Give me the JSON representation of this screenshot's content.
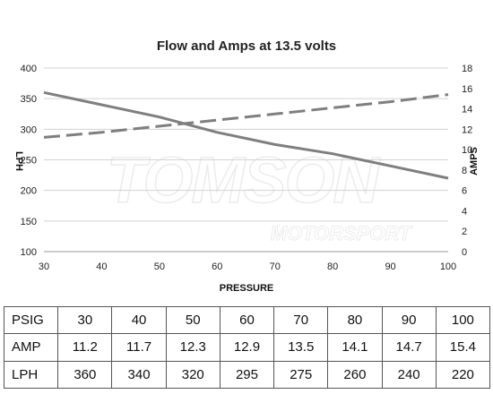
{
  "chart_data": {
    "type": "line",
    "title": "Flow and Amps at 13.5 volts",
    "xlabel": "PRESSURE",
    "ylabel_left": "LPH",
    "ylabel_right": "AMPS",
    "x": [
      30,
      40,
      50,
      60,
      70,
      80,
      90,
      100
    ],
    "xlim": [
      30,
      100
    ],
    "xticks": [
      30,
      40,
      50,
      60,
      70,
      80,
      90,
      100
    ],
    "ylim_left": [
      100,
      400
    ],
    "yticks_left": [
      100,
      150,
      200,
      250,
      300,
      350,
      400
    ],
    "ylim_right": [
      0,
      18
    ],
    "yticks_right": [
      0,
      2,
      4,
      6,
      8,
      10,
      12,
      14,
      16,
      18
    ],
    "grid": "horizontal",
    "series": [
      {
        "name": "LPH",
        "axis": "left",
        "style": "solid",
        "color": "#7f7f7f",
        "values": [
          360,
          340,
          320,
          295,
          275,
          260,
          240,
          220
        ]
      },
      {
        "name": "AMP",
        "axis": "right",
        "style": "dashed",
        "color": "#7f7f7f",
        "values": [
          11.2,
          11.7,
          12.3,
          12.9,
          13.5,
          14.1,
          14.7,
          15.4
        ]
      }
    ]
  },
  "watermark": {
    "main": "TOMSON",
    "sub": "MOTORSPORT"
  },
  "table": {
    "rows": [
      {
        "label": "PSIG",
        "values": [
          "30",
          "40",
          "50",
          "60",
          "70",
          "80",
          "90",
          "100"
        ]
      },
      {
        "label": "AMP",
        "values": [
          "11.2",
          "11.7",
          "12.3",
          "12.9",
          "13.5",
          "14.1",
          "14.7",
          "15.4"
        ]
      },
      {
        "label": "LPH",
        "values": [
          "360",
          "340",
          "320",
          "295",
          "275",
          "260",
          "240",
          "220"
        ]
      }
    ]
  }
}
